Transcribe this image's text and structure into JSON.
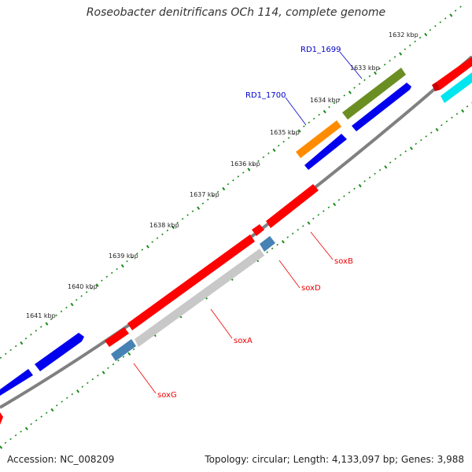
{
  "title": "Roseobacter denitrificans OCh 114, complete genome",
  "footer": {
    "accession": "Accession: NC_008209",
    "stats": "Topology: circular; Length: 4,133,097 bp; Genes: 3,988"
  },
  "ticks": [
    "1632 kbp",
    "1633 kbp",
    "1634 kbp",
    "1635 kbp",
    "1636 kbp",
    "1637 kbp",
    "1638 kbp",
    "1639 kbp",
    "1640 kbp",
    "1641 kbp"
  ],
  "gene_labels": {
    "rd1_1699": "RD1_1699",
    "rd1_1700": "RD1_1700",
    "soxB": "soxB",
    "soxD": "soxD",
    "soxA": "soxA",
    "soxG": "soxG"
  },
  "colors": {
    "forward_gene": "#ff0000",
    "reverse_gene": "#0000ee",
    "olive_feature": "#6b8e23",
    "orange_feature": "#ff8c00",
    "cyan_feature": "#00e5ee",
    "gray_feature": "#c8c8c8",
    "steel_feature": "#4682b4",
    "backbone": "#808080",
    "tick": "#1a8a1a",
    "blue_label": "#0000cc",
    "red_label": "#ee0000"
  }
}
